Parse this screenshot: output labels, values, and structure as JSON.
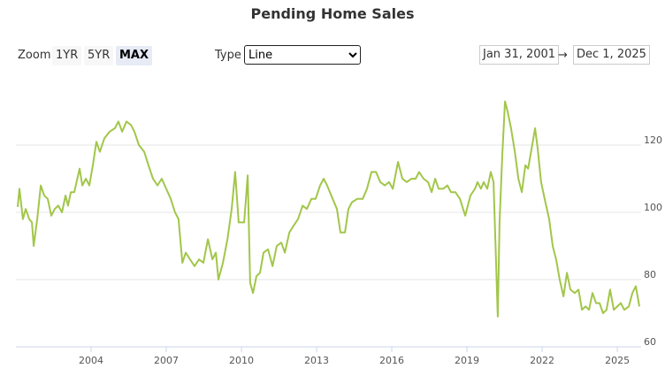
{
  "chart_data": {
    "type": "line",
    "title": "Pending Home Sales",
    "controls": {
      "zoom_label": "Zoom",
      "zoom_buttons": [
        "1YR",
        "5YR",
        "MAX"
      ],
      "type_label": "Type",
      "type_value": "Line",
      "from": "Jan 31, 2001",
      "arrow": "→",
      "to": "Dec 1, 2025"
    },
    "color": "#a2c64a",
    "xlim": [
      2001,
      2025.95
    ],
    "xticks": [
      2004,
      2007,
      2010,
      2013,
      2016,
      2019,
      2022,
      2025
    ],
    "ylim": [
      60,
      140
    ],
    "yticks": [
      60,
      80,
      100,
      120
    ],
    "grid": true,
    "x": [
      2001.07,
      2001.14,
      2001.28,
      2001.39,
      2001.53,
      2001.64,
      2001.71,
      2001.85,
      2001.99,
      2002.13,
      2002.27,
      2002.41,
      2002.55,
      2002.69,
      2002.84,
      2002.98,
      2003.08,
      2003.19,
      2003.33,
      2003.54,
      2003.65,
      2003.79,
      2003.93,
      2004.07,
      2004.21,
      2004.35,
      2004.53,
      2004.74,
      2004.95,
      2005.09,
      2005.24,
      2005.41,
      2005.59,
      2005.73,
      2005.91,
      2006.12,
      2006.29,
      2006.47,
      2006.65,
      2006.82,
      2007.0,
      2007.18,
      2007.35,
      2007.49,
      2007.64,
      2007.78,
      2007.95,
      2008.13,
      2008.31,
      2008.48,
      2008.66,
      2008.84,
      2008.98,
      2009.08,
      2009.26,
      2009.44,
      2009.61,
      2009.75,
      2009.89,
      2010.11,
      2010.25,
      2010.35,
      2010.46,
      2010.6,
      2010.74,
      2010.88,
      2011.06,
      2011.24,
      2011.41,
      2011.59,
      2011.73,
      2011.91,
      2012.08,
      2012.26,
      2012.44,
      2012.61,
      2012.79,
      2012.96,
      2013.14,
      2013.28,
      2013.42,
      2013.64,
      2013.81,
      2013.95,
      2014.13,
      2014.27,
      2014.41,
      2014.62,
      2014.84,
      2015.01,
      2015.19,
      2015.37,
      2015.54,
      2015.72,
      2015.89,
      2016.04,
      2016.25,
      2016.42,
      2016.6,
      2016.78,
      2016.95,
      2017.09,
      2017.27,
      2017.45,
      2017.59,
      2017.73,
      2017.87,
      2018.05,
      2018.22,
      2018.36,
      2018.54,
      2018.72,
      2018.93,
      2019.14,
      2019.32,
      2019.42,
      2019.56,
      2019.67,
      2019.81,
      2019.95,
      2020.06,
      2020.23,
      2020.3,
      2020.41,
      2020.52,
      2020.62,
      2020.76,
      2020.91,
      2021.05,
      2021.19,
      2021.33,
      2021.44,
      2021.58,
      2021.72,
      2021.82,
      2021.96,
      2022.1,
      2022.28,
      2022.42,
      2022.56,
      2022.7,
      2022.85,
      2022.99,
      2023.13,
      2023.3,
      2023.45,
      2023.59,
      2023.73,
      2023.87,
      2024.01,
      2024.15,
      2024.29,
      2024.43,
      2024.57,
      2024.71,
      2024.86,
      2025.0,
      2025.14,
      2025.28,
      2025.46,
      2025.6,
      2025.74,
      2025.88
    ],
    "values": [
      101.6,
      107,
      98,
      101,
      98,
      97,
      90,
      98,
      108,
      105,
      104,
      99,
      101,
      102,
      100,
      105,
      102,
      106,
      106,
      113,
      108,
      110,
      108,
      114,
      121,
      118,
      122,
      124,
      125,
      127,
      124,
      127,
      126,
      124,
      120,
      118,
      114,
      110,
      108,
      110,
      107,
      104,
      100,
      98,
      85,
      88,
      86,
      84,
      86,
      85,
      92,
      86,
      88,
      80,
      85,
      92,
      101,
      112,
      97,
      97,
      111,
      79,
      76,
      81,
      82,
      88,
      89,
      84,
      90,
      91,
      88,
      94,
      96,
      98,
      102,
      101,
      104,
      104,
      108,
      110,
      108,
      104,
      101,
      94,
      94,
      101,
      103,
      104,
      104,
      107,
      112,
      112,
      109,
      108,
      109,
      107,
      115,
      110,
      109,
      110,
      110,
      112,
      110,
      109,
      106,
      110,
      107,
      107,
      108,
      106,
      106,
      104,
      99,
      105,
      107,
      109,
      107,
      109,
      107,
      112,
      109,
      69,
      97,
      117,
      133,
      130,
      125,
      118,
      110,
      106,
      114,
      113,
      119,
      125,
      119,
      109,
      104,
      98,
      90,
      86,
      80,
      75,
      82,
      77,
      76,
      77,
      71,
      72,
      71,
      76,
      73,
      73,
      70,
      71,
      77,
      71,
      72,
      73,
      71,
      72,
      76,
      78,
      72
    ]
  }
}
